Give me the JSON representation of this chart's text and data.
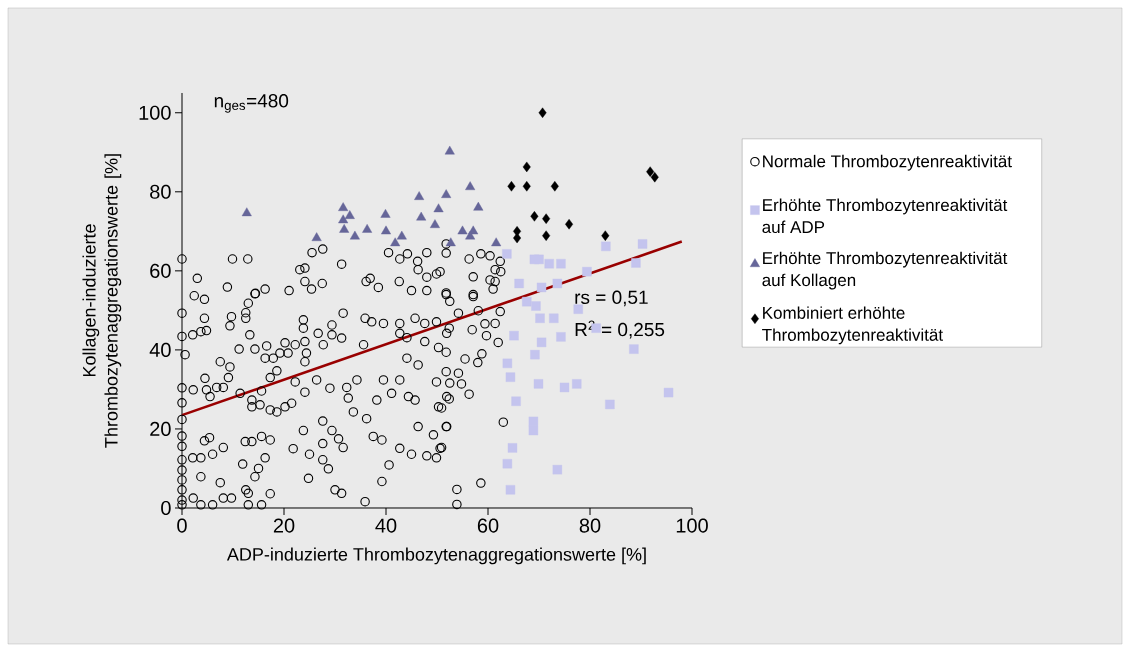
{
  "chart_data": {
    "type": "scatter",
    "xlabel": "ADP-induzierte Thrombozytenaggregationswerte [%]",
    "ylabel": "Kollagen-induzierte Thrombozytenaggregationswerte [%]",
    "xlim": [
      0,
      100
    ],
    "ylim": [
      0,
      105
    ],
    "xticks": [
      0,
      20,
      40,
      60,
      80,
      100
    ],
    "yticks": [
      0,
      20,
      40,
      60,
      80,
      100
    ],
    "grid": false,
    "legend": "right",
    "annotations": [
      "n$_{ges}$=480",
      "rs = 0,51",
      "R$^{2}$ = 0,255"
    ],
    "series": [
      {
        "name": "Normale Thrombozytenreaktivität",
        "marker": "circle",
        "color": "#000000",
        "x": [
          0,
          3,
          9.9,
          12.9,
          2.4,
          4.4,
          8.9,
          14.4,
          16.3,
          21,
          23.1,
          24.1,
          24.1,
          25.4,
          27.5,
          25.5,
          27.6,
          31.3,
          36.1,
          36.9,
          38.5,
          40.5,
          42.6,
          42.7,
          44.2,
          46.2,
          46.3,
          48,
          48,
          49.9,
          45,
          48,
          51.8,
          0,
          0,
          0.6,
          0,
          0,
          0,
          0,
          0,
          0,
          0,
          0,
          0,
          0,
          0,
          4.4,
          3.7,
          4.8,
          2.1,
          7.5,
          9.4,
          9.4,
          9.7,
          12.5,
          12.5,
          13,
          14.3,
          13.3,
          11.2,
          14.3,
          16.6,
          16.3,
          17.9,
          19.2,
          20.8,
          20.2,
          22.2,
          23.8,
          23.8,
          24.1,
          24.4,
          24.1,
          26.7,
          27.7,
          29.4,
          29.4,
          31.6,
          31.3,
          35.6,
          35.9,
          37.2,
          39.5,
          42.7,
          42.7,
          44.1,
          45.7,
          47.6,
          47.6,
          49.9,
          50.3,
          51.9,
          2.2,
          4.5,
          4.8,
          5.5,
          6.8,
          8.1,
          9.1,
          11.4,
          13.7,
          13.7,
          15.3,
          17.3,
          18.6,
          20.2,
          21.5,
          15.6,
          17.3,
          18.6,
          22.2,
          24.1,
          26.4,
          29,
          32.3,
          34.3,
          32.6,
          33.6,
          36.2,
          38.2,
          39.5,
          41.1,
          42.7,
          44.1,
          44.4,
          45.7,
          46.3,
          49.9,
          50.3,
          51.9,
          2.1,
          3.7,
          5.4,
          4.4,
          6,
          8.1,
          3.7,
          7.5,
          2.2,
          3.7,
          6,
          8.1,
          9.7,
          11.9,
          12.4,
          13.7,
          15.6,
          17.3,
          15,
          14.3,
          16.3,
          12.5,
          13,
          13,
          15.6,
          17.3,
          21.8,
          23.8,
          25,
          24.8,
          27.6,
          27.6,
          27.6,
          28.7,
          29.4,
          30.7,
          31.6,
          30,
          31.3,
          35.9,
          37.5,
          39.2,
          39.2,
          40.6,
          42.7,
          45,
          46.3,
          48,
          49.3,
          49.9,
          50.6,
          51.9,
          51.8,
          54.2,
          57.1,
          62.4,
          58.1,
          52.4,
          56.9,
          59.4,
          61.4,
          59.7,
          62,
          58.8,
          58,
          55.5,
          51.8,
          51.8,
          54.2,
          52.5,
          54.8,
          56.3,
          52.4,
          50.9,
          51.8,
          63,
          50.9,
          58.6,
          53.9,
          53.9,
          51.8,
          56.3,
          58.6,
          60.4,
          62.4,
          61.4,
          62.5,
          57.1,
          60.4,
          61.4,
          61,
          51.8,
          57.1,
          52.5,
          50.6
        ],
        "values": [
          63,
          58.1,
          63,
          63,
          53.7,
          52.8,
          55.9,
          54.3,
          55.4,
          55,
          60.3,
          60.7,
          57.3,
          55.4,
          56.8,
          64.6,
          65.5,
          61.7,
          57.3,
          58.1,
          55.8,
          64.6,
          57.3,
          63,
          64.3,
          62.4,
          60.3,
          64.6,
          58.4,
          59.2,
          55,
          55,
          66.8,
          49.3,
          43.4,
          38.8,
          30.4,
          26.6,
          22.4,
          18.2,
          15.6,
          12.2,
          9.6,
          7.1,
          4.6,
          2,
          0.8,
          48,
          44.6,
          44.9,
          43.8,
          37,
          35.7,
          46.1,
          48.4,
          49.4,
          48,
          51.8,
          54.2,
          43.8,
          40.2,
          40.2,
          41,
          37.9,
          37.9,
          39.2,
          39.2,
          41.8,
          41.3,
          47.6,
          45.5,
          42.1,
          39.2,
          37,
          44.2,
          41.3,
          46.3,
          43.8,
          49.3,
          43,
          41.3,
          48,
          47.1,
          46.7,
          46.7,
          44.2,
          43.1,
          48,
          46.7,
          42.1,
          47.1,
          40.6,
          44.2,
          29.9,
          32.8,
          29.9,
          28.2,
          30.5,
          30.5,
          33,
          29,
          27.3,
          25.6,
          26.1,
          24.8,
          24.3,
          25.6,
          26.5,
          29.6,
          33,
          34.7,
          31.9,
          29.3,
          32.4,
          30.3,
          30.5,
          32.4,
          27.8,
          24.3,
          22.6,
          27.3,
          32.4,
          29,
          32.4,
          37.9,
          28.2,
          27.3,
          36.2,
          31.9,
          25.6,
          28.2,
          12.7,
          12.7,
          17.8,
          17,
          13.6,
          15.3,
          7.9,
          6.4,
          2.5,
          0.8,
          0.8,
          2.5,
          2.5,
          11.1,
          16.8,
          16.8,
          18.1,
          17.2,
          10,
          7.9,
          12.7,
          4.6,
          3.7,
          0.8,
          0.8,
          3.6,
          15,
          19.6,
          13.6,
          7.5,
          22,
          16.3,
          12.2,
          9.9,
          19.6,
          17.5,
          15.3,
          4.6,
          3.7,
          1.6,
          18.1,
          17.2,
          6.7,
          10.9,
          15.1,
          13.6,
          20.6,
          13.2,
          18.5,
          12.7,
          15.1,
          20.6,
          54,
          49.3,
          53.5,
          49.7,
          49.9,
          45.5,
          45.1,
          46.6,
          46.7,
          43.6,
          41.9,
          39,
          36.8,
          37.7,
          39.4,
          34.5,
          34.1,
          31.6,
          31.4,
          28.8,
          27.6,
          25.3,
          20.6,
          21.7,
          15.3,
          6.3,
          4.7,
          0.9,
          64.5,
          63,
          64.3,
          63.8,
          62.4,
          60.3,
          59.8,
          58.5,
          57.7,
          57.3,
          55.4,
          54.4,
          54,
          52.3,
          59.8
        ]
      },
      {
        "name": "Erhöhte Thrombozytenreaktivität auf ADP",
        "marker": "square",
        "color": "#c4c4ee",
        "x": [
          63.7,
          69.1,
          70,
          72,
          74.3,
          79.4,
          83.1,
          90.3,
          89,
          66.1,
          70.5,
          73.6,
          67.6,
          69.4,
          77.7,
          70.2,
          72.9,
          65.1,
          70.5,
          74.3,
          81.2,
          88.6,
          69.2,
          63.8,
          64.4,
          69.9,
          75,
          77.4,
          95.4,
          83.9,
          65.5,
          68.9,
          68.9,
          64.8,
          63.8,
          73.6,
          64.4
        ],
        "values": [
          64.3,
          62.9,
          62.9,
          61.8,
          61.8,
          59.8,
          66.2,
          66.8,
          62,
          56.8,
          55.8,
          56.8,
          52.2,
          51.1,
          50.3,
          48,
          48,
          43.6,
          41.9,
          43.3,
          45.5,
          40.2,
          38.8,
          36.6,
          33.1,
          31.4,
          30.5,
          31.4,
          29.2,
          26.2,
          27,
          21.9,
          19.6,
          15.2,
          11.2,
          9.7,
          4.6
        ]
      },
      {
        "name": "Erhöhte Thrombozytenreaktivität auf Kollagen",
        "marker": "triangle",
        "color": "#666699",
        "x": [
          12.7,
          31.6,
          31.6,
          32.9,
          39.9,
          46.5,
          51.8,
          50.3,
          46.9,
          49.6,
          31.8,
          33.9,
          36.3,
          40,
          43.1,
          41.8,
          26.4,
          52.5,
          56.5,
          58.1,
          55,
          57.1,
          56.5,
          52.7,
          61.6
        ],
        "values": [
          74.6,
          75.9,
          72.8,
          73.9,
          74.2,
          78.7,
          79.2,
          75.6,
          73.5,
          71.6,
          70.4,
          68.7,
          70.4,
          70,
          68.7,
          67,
          68.3,
          90.2,
          81.2,
          76,
          70,
          70,
          68.7,
          67,
          67
        ]
      },
      {
        "name": "Kombiniert erhöhte Thrombozytenreaktivität",
        "marker": "diamond",
        "color": "#000000",
        "x": [
          70.7,
          67.6,
          64.6,
          67.6,
          73.1,
          91.8,
          92.7,
          69.1,
          71.4,
          75.9,
          65.7,
          65.7,
          71.4,
          83
        ],
        "values": [
          100,
          86.3,
          81.4,
          81.4,
          81.4,
          85.1,
          83.7,
          73.8,
          73.2,
          71.8,
          70,
          68.3,
          68.9,
          68.9
        ]
      },
      {
        "type": "line",
        "color": "#990000",
        "line_style": "solid",
        "x": [
          0,
          98
        ],
        "values": [
          23.5,
          67.4
        ]
      }
    ]
  }
}
